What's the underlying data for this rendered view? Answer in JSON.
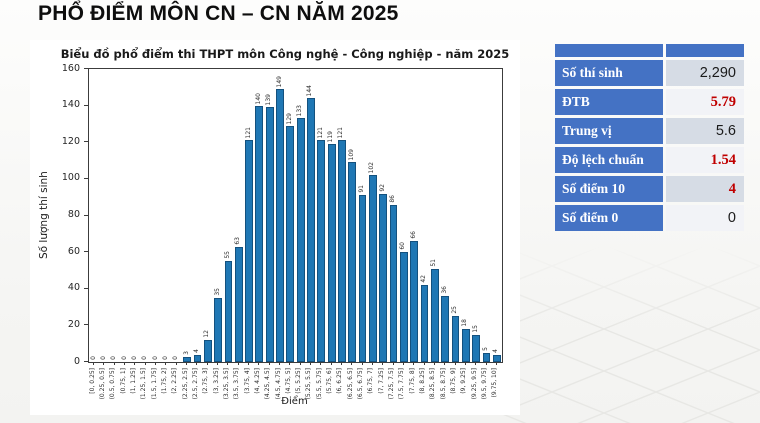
{
  "page": {
    "title": "PHỔ ĐIỂM MÔN CN – CN NĂM 2025"
  },
  "chart_data": {
    "type": "bar",
    "title": "Biểu đồ phổ điểm thi THPT môn Công nghệ - Công nghiệp - năm 2025",
    "xlabel": "Điểm",
    "ylabel": "Số lượng thí sinh",
    "ylim": [
      0,
      160
    ],
    "yticks": [
      0,
      20,
      40,
      60,
      80,
      100,
      120,
      140,
      160
    ],
    "grid": false,
    "legend": "none",
    "bar_color": "#1f77b4",
    "bar_edge_color": "#14517e",
    "categories": [
      "[0, 0.25]",
      "(0.25, 0.5]",
      "(0.5, 0.75]",
      "(0.75, 1]",
      "(1, 1.25]",
      "(1.25, 1.5]",
      "(1.5, 1.75]",
      "(1.75, 2]",
      "(2, 2.25]",
      "(2.25, 2.5]",
      "(2.5, 2.75]",
      "(2.75, 3]",
      "(3, 3.25]",
      "(3.25, 3.5]",
      "(3.5, 3.75]",
      "(3.75, 4]",
      "(4, 4.25]",
      "(4.25, 4.5]",
      "(4.5, 4.75]",
      "(4.75, 5]",
      "(5, 5.25]",
      "(5.25, 5.5]",
      "(5.5, 5.75]",
      "(5.75, 6]",
      "(6, 6.25]",
      "(6.25, 6.5]",
      "(6.5, 6.75]",
      "(6.75, 7]",
      "(7, 7.25]",
      "(7.25, 7.5]",
      "(7.5, 7.75]",
      "(7.75, 8]",
      "(8, 8.25]",
      "(8.25, 8.5]",
      "(8.5, 8.75]",
      "(8.75, 9]",
      "(9, 9.25]",
      "(9.25, 9.5]",
      "(9.5, 9.75]",
      "(9.75, 10]"
    ],
    "values": [
      0,
      0,
      0,
      0,
      0,
      0,
      0,
      0,
      0,
      3,
      4,
      12,
      35,
      55,
      63,
      121,
      140,
      139,
      149,
      129,
      133,
      144,
      121,
      119,
      121,
      109,
      91,
      102,
      92,
      86,
      60,
      66,
      42,
      51,
      36,
      25,
      18,
      15,
      5,
      4
    ]
  },
  "stats_table": {
    "header_color": "#4472c4",
    "band_colors": [
      "#d6dce5",
      "#f2f3f7"
    ],
    "rows": [
      {
        "label": "Số thí sinh",
        "value": "2,290",
        "value_color": "#1a1a1a",
        "bold": false
      },
      {
        "label": "ĐTB",
        "value": "5.79",
        "value_color": "#c00000",
        "bold": true
      },
      {
        "label": "Trung vị",
        "value": "5.6",
        "value_color": "#1a1a1a",
        "bold": false
      },
      {
        "label": "Độ lệch chuẩn",
        "value": "1.54",
        "value_color": "#c00000",
        "bold": true
      },
      {
        "label": "Số điểm 10",
        "value": "4",
        "value_color": "#c00000",
        "bold": true
      },
      {
        "label": "Số điểm 0",
        "value": "0",
        "value_color": "#1a1a1a",
        "bold": false
      }
    ]
  }
}
